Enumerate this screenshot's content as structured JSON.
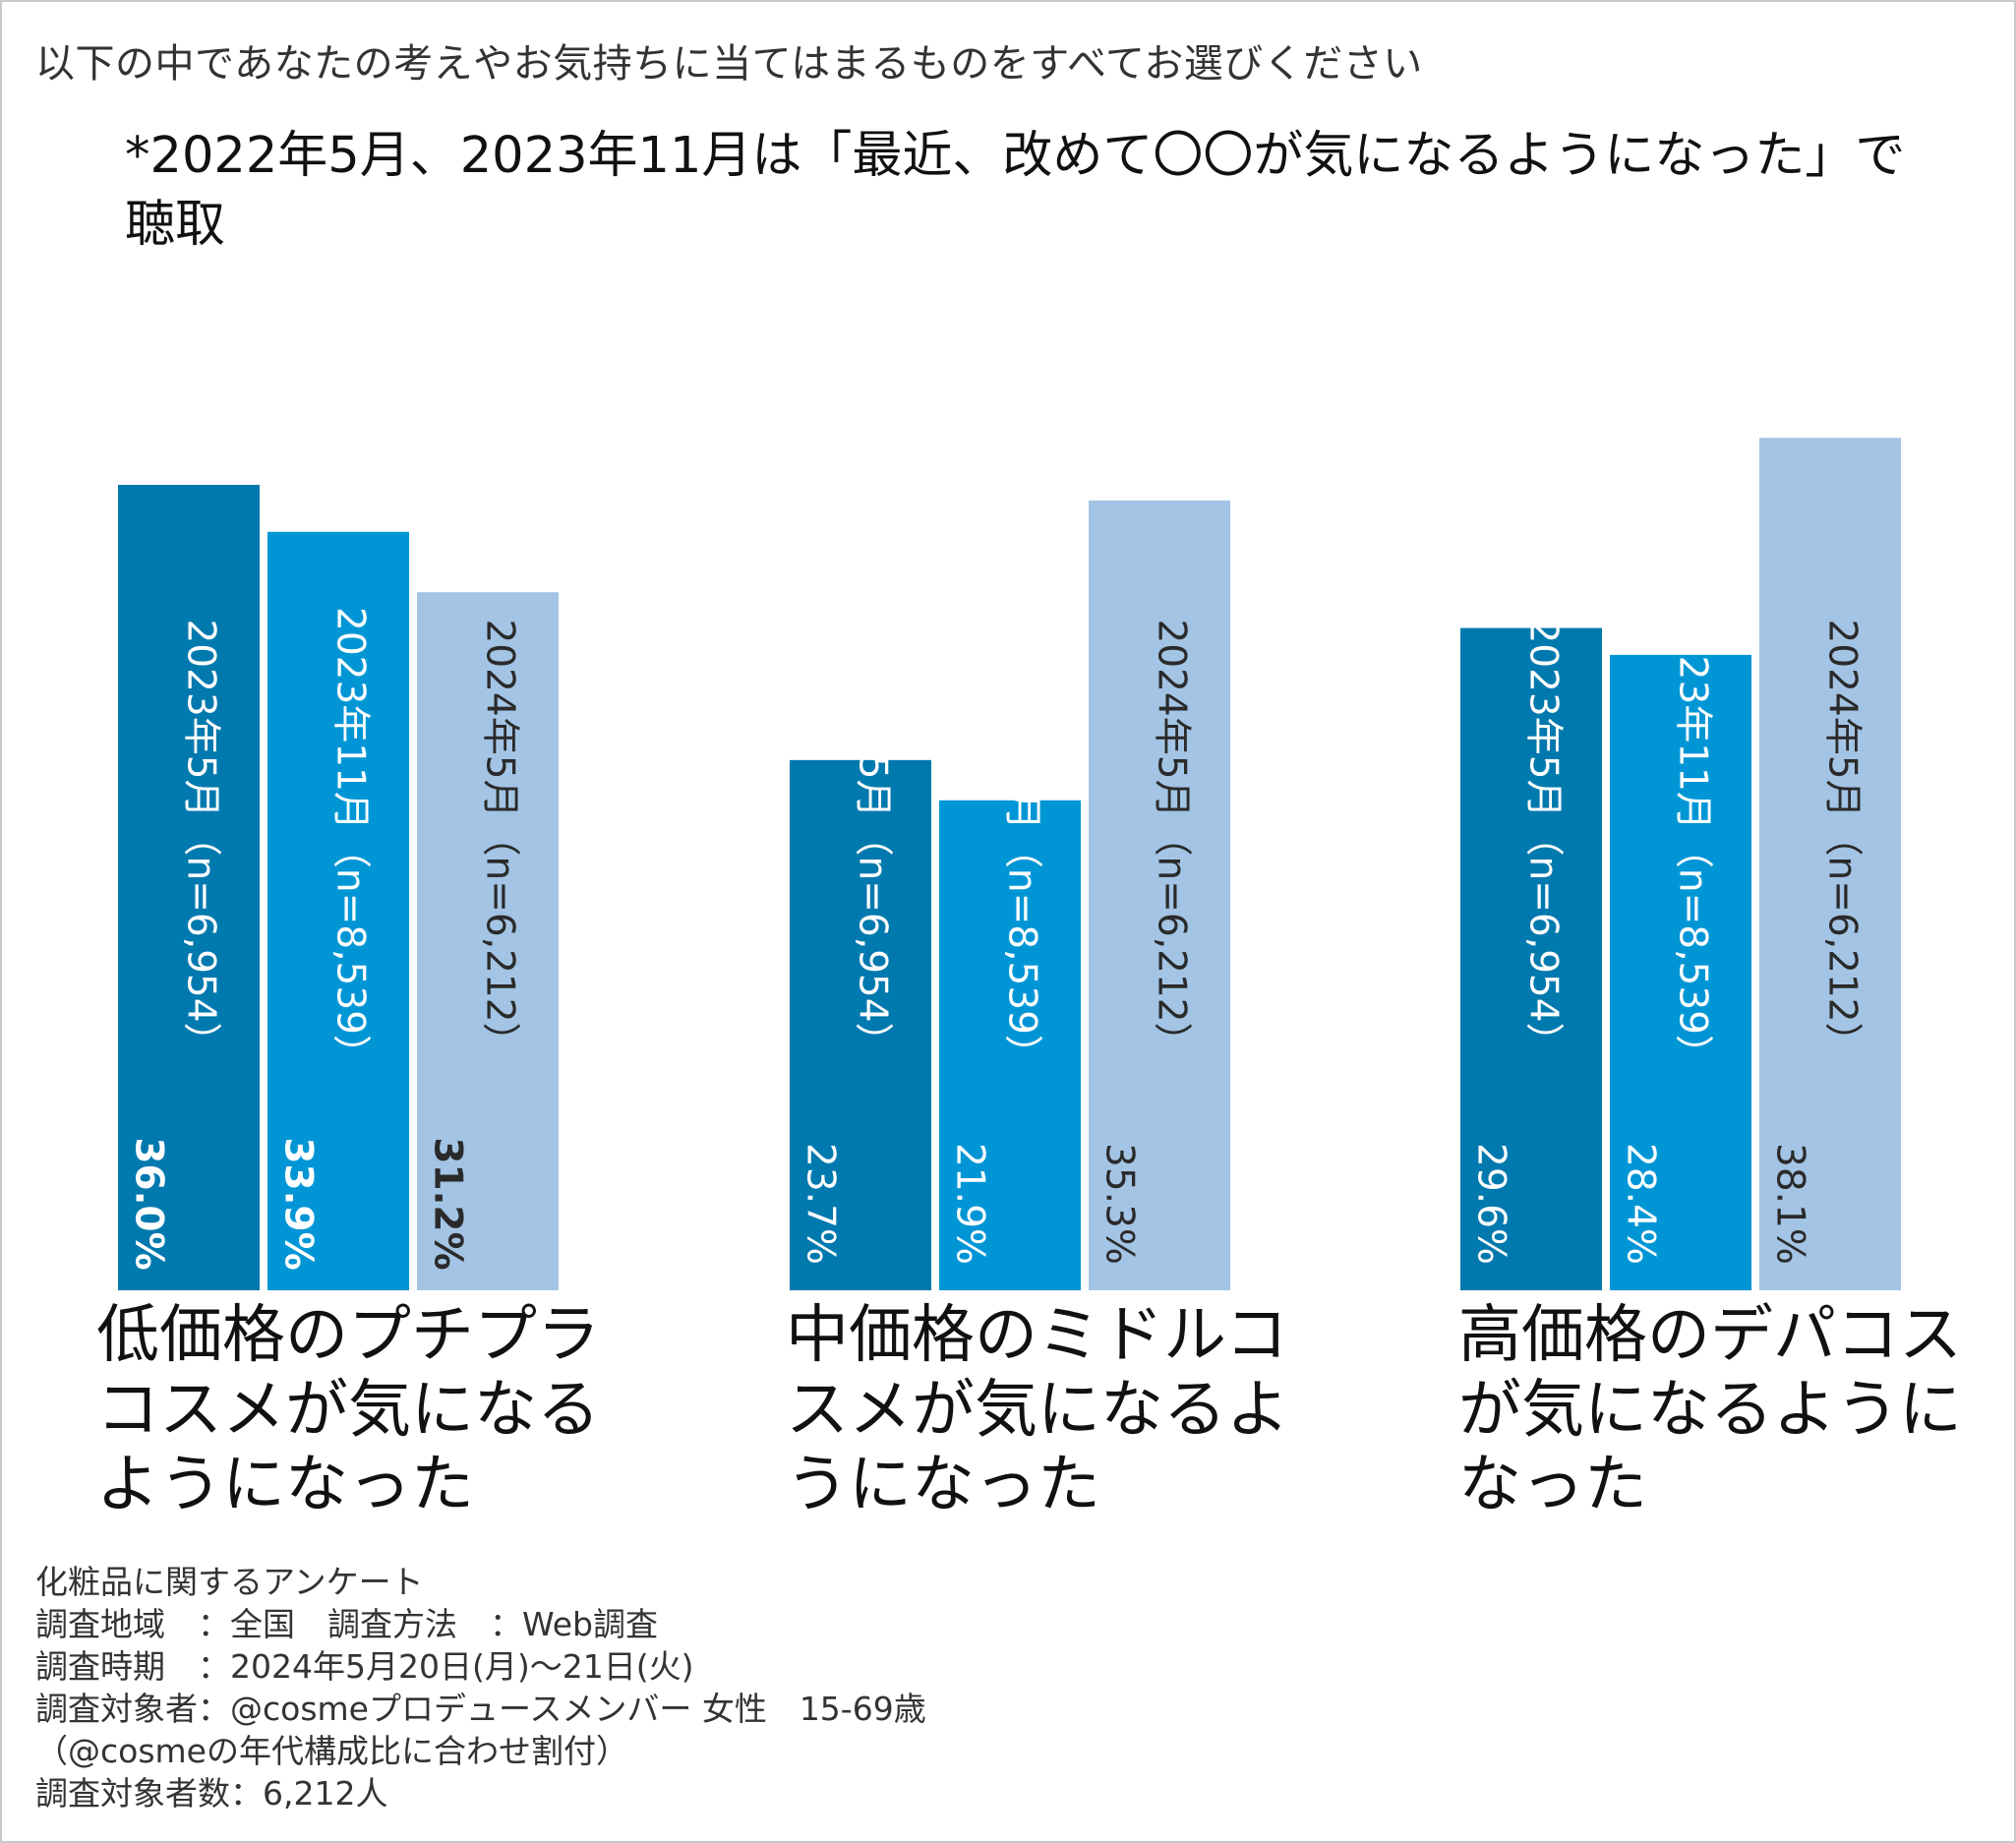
{
  "question": "以下の中であなたの考えやお気持ちに当てはまるものをすべてお選びください",
  "note": "*2022年5月、2023年11月は「最近、改めて〇〇が気になるようになった」で聴取",
  "chart_data": {
    "type": "bar",
    "categories": [
      "低価格のプチプラコスメが気になるようになった",
      "中価格のミドルコスメが気になるようになった",
      "高価格のデパコスが気になるようになった"
    ],
    "series": [
      {
        "name": "2023年5月（n=6,954）",
        "color": "#0079ae",
        "values": [
          36.0,
          23.7,
          29.6
        ]
      },
      {
        "name": "2023年11月（n=8,539）",
        "color": "#0096d6",
        "values": [
          33.9,
          21.9,
          28.4
        ]
      },
      {
        "name": "2024年5月（n=6,212）",
        "color": "#a3c4e4",
        "values": [
          31.2,
          35.3,
          38.1
        ]
      }
    ],
    "value_labels": [
      [
        "36.0%",
        "33.9%",
        "31.2%"
      ],
      [
        "23.7%",
        "21.9%",
        "35.3%"
      ],
      [
        "29.6%",
        "28.4%",
        "38.1%"
      ]
    ],
    "bold_group": 0,
    "ylim": [
      0,
      40
    ],
    "title": "",
    "xlabel": "",
    "ylabel": ""
  },
  "footer": [
    "化粧品に関するアンケート",
    "調査地域　：全国　調査方法　：Web調査",
    "調査時期　：2024年5月20日(月)～21日(火)",
    "調査対象者：@cosmeプロデュースメンバー 女性　15-69歳",
    "（@cosmeの年代構成比に合わせ割付）",
    "調査対象者数：6,212人"
  ]
}
